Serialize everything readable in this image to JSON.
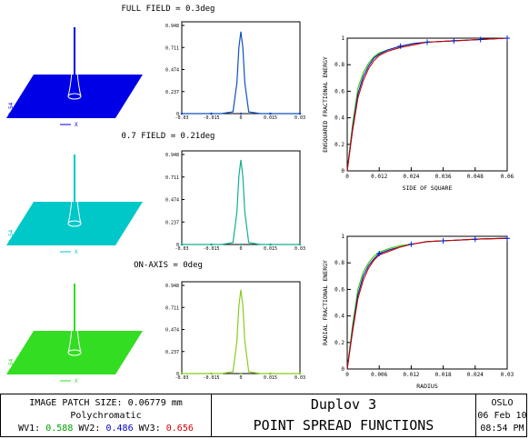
{
  "colors": {
    "wl1": "#33cc00",
    "wl2": "#0022cc",
    "wl3": "#cc0000",
    "field_full": "#0000e6",
    "field_07": "#00c8c8",
    "field_axis": "#33dd22"
  },
  "fields": [
    {
      "label": "FULL FIELD = 0.3deg",
      "surface_color": "#0000e6",
      "line_color": "#ffffff",
      "profile_color": "#1050c0",
      "axis_label": "0.54",
      "x_label": "X"
    },
    {
      "label": "0.7 FIELD = 0.21deg",
      "surface_color": "#00c8c8",
      "line_color": "#ffffff",
      "profile_color": "#10b090",
      "axis_label": "0.54",
      "x_label": "X"
    },
    {
      "label": "ON-AXIS = 0deg",
      "surface_color": "#33dd22",
      "line_color": "#ffffff",
      "profile_color": "#88cc22",
      "axis_label": "0.54",
      "x_label": "X"
    }
  ],
  "chart_data": [
    {
      "type": "line",
      "name": "psf-profile-full",
      "y_ticks": [
        "0.948",
        "0.711",
        "0.474",
        "0.237",
        "0"
      ],
      "x_ticks": [
        "-0.03",
        "-0.015",
        "0",
        "0.015",
        "0.03"
      ],
      "x": [
        -0.03,
        -0.02,
        -0.01,
        -0.004,
        -0.002,
        -0.001,
        0,
        0.001,
        0.002,
        0.004,
        0.01,
        0.02,
        0.03
      ],
      "y": [
        0,
        0,
        0,
        0.02,
        0.35,
        0.75,
        0.93,
        0.75,
        0.35,
        0.02,
        0,
        0,
        0
      ]
    },
    {
      "type": "line",
      "name": "psf-profile-07",
      "y_ticks": [
        "0.948",
        "0.711",
        "0.474",
        "0.237",
        "0"
      ],
      "x_ticks": [
        "-0.03",
        "-0.015",
        "0",
        "0.015",
        "0.03"
      ],
      "x": [
        -0.03,
        -0.02,
        -0.01,
        -0.004,
        -0.002,
        -0.001,
        0,
        0.001,
        0.002,
        0.004,
        0.01,
        0.02,
        0.03
      ],
      "y": [
        0,
        0,
        0,
        0.02,
        0.36,
        0.76,
        0.94,
        0.76,
        0.36,
        0.02,
        0,
        0,
        0
      ]
    },
    {
      "type": "line",
      "name": "psf-profile-axis",
      "y_ticks": [
        "0.948",
        "0.711",
        "0.474",
        "0.237",
        "0"
      ],
      "x_ticks": [
        "-0.03",
        "-0.015",
        "0",
        "0.015",
        "0.03"
      ],
      "x": [
        -0.03,
        -0.02,
        -0.01,
        -0.004,
        -0.002,
        -0.001,
        0,
        0.001,
        0.002,
        0.004,
        0.01,
        0.02,
        0.03
      ],
      "y": [
        0,
        0,
        0,
        0.02,
        0.37,
        0.77,
        0.95,
        0.77,
        0.37,
        0.02,
        0,
        0,
        0
      ]
    },
    {
      "type": "line",
      "name": "ensquared-energy",
      "xlabel": "SIDE OF SQUARE",
      "ylabel": "ENSQUARED FRACTIONAL ENERGY",
      "x_ticks": [
        "0",
        "0.012",
        "0.024",
        "0.036",
        "0.048",
        "0.06"
      ],
      "y_ticks": [
        "0",
        "0.2",
        "0.4",
        "0.6",
        "0.8",
        "1"
      ],
      "series": [
        {
          "x": [
            0,
            0.002,
            0.004,
            0.006,
            0.008,
            0.01,
            0.012,
            0.015,
            0.02,
            0.025,
            0.03,
            0.04,
            0.05,
            0.06
          ],
          "y": [
            0,
            0.35,
            0.62,
            0.74,
            0.81,
            0.86,
            0.89,
            0.91,
            0.94,
            0.96,
            0.97,
            0.98,
            0.99,
            1.0
          ],
          "color": "#33cc00"
        },
        {
          "x": [
            0,
            0.002,
            0.004,
            0.006,
            0.008,
            0.01,
            0.012,
            0.015,
            0.02,
            0.025,
            0.03,
            0.04,
            0.05,
            0.06
          ],
          "y": [
            0,
            0.32,
            0.58,
            0.71,
            0.79,
            0.85,
            0.88,
            0.91,
            0.94,
            0.96,
            0.97,
            0.98,
            0.99,
            1.0
          ],
          "color": "#0022cc"
        },
        {
          "x": [
            0,
            0.002,
            0.004,
            0.006,
            0.008,
            0.01,
            0.012,
            0.015,
            0.02,
            0.025,
            0.03,
            0.04,
            0.05,
            0.06
          ],
          "y": [
            0,
            0.3,
            0.55,
            0.68,
            0.77,
            0.83,
            0.87,
            0.9,
            0.93,
            0.95,
            0.97,
            0.98,
            0.99,
            1.0
          ],
          "color": "#cc0000"
        }
      ],
      "markers_x": [
        0.02,
        0.03,
        0.04,
        0.05,
        0.06
      ]
    },
    {
      "type": "line",
      "name": "radial-energy",
      "xlabel": "RADIUS",
      "ylabel": "RADIAL FRACTIONAL ENERGY",
      "x_ticks": [
        "0",
        "0.006",
        "0.012",
        "0.018",
        "0.024",
        "0.03"
      ],
      "y_ticks": [
        "0",
        "0.2",
        "0.4",
        "0.6",
        "0.8",
        "1"
      ],
      "series": [
        {
          "x": [
            0,
            0.001,
            0.002,
            0.003,
            0.004,
            0.005,
            0.006,
            0.008,
            0.01,
            0.012,
            0.015,
            0.02,
            0.025,
            0.03
          ],
          "y": [
            0,
            0.33,
            0.6,
            0.73,
            0.8,
            0.85,
            0.88,
            0.91,
            0.93,
            0.94,
            0.96,
            0.97,
            0.98,
            0.985
          ],
          "color": "#33cc00"
        },
        {
          "x": [
            0,
            0.001,
            0.002,
            0.003,
            0.004,
            0.005,
            0.006,
            0.008,
            0.01,
            0.012,
            0.015,
            0.02,
            0.025,
            0.03
          ],
          "y": [
            0,
            0.3,
            0.56,
            0.7,
            0.78,
            0.83,
            0.87,
            0.9,
            0.92,
            0.94,
            0.96,
            0.97,
            0.98,
            0.985
          ],
          "color": "#0022cc"
        },
        {
          "x": [
            0,
            0.001,
            0.002,
            0.003,
            0.004,
            0.005,
            0.006,
            0.008,
            0.01,
            0.012,
            0.015,
            0.02,
            0.025,
            0.03
          ],
          "y": [
            0,
            0.28,
            0.53,
            0.67,
            0.76,
            0.82,
            0.86,
            0.89,
            0.92,
            0.94,
            0.96,
            0.97,
            0.98,
            0.985
          ],
          "color": "#cc0000"
        }
      ],
      "markers_x": [
        0.006,
        0.012,
        0.018,
        0.024,
        0.03
      ]
    }
  ],
  "footer": {
    "patch_size": "IMAGE PATCH SIZE: 0.06779 mm",
    "mode": "Polychromatic",
    "wl1_label": "WV1:",
    "wl1_value": "0.588",
    "wl2_label": "WV2:",
    "wl2_value": "0.486",
    "wl3_label": "WV3:",
    "wl3_value": "0.656",
    "title": "Duplov 3",
    "subtitle": "POINT SPREAD FUNCTIONS",
    "program": "OSLO",
    "date": "06 Feb 10",
    "time": "08:54 PM"
  }
}
